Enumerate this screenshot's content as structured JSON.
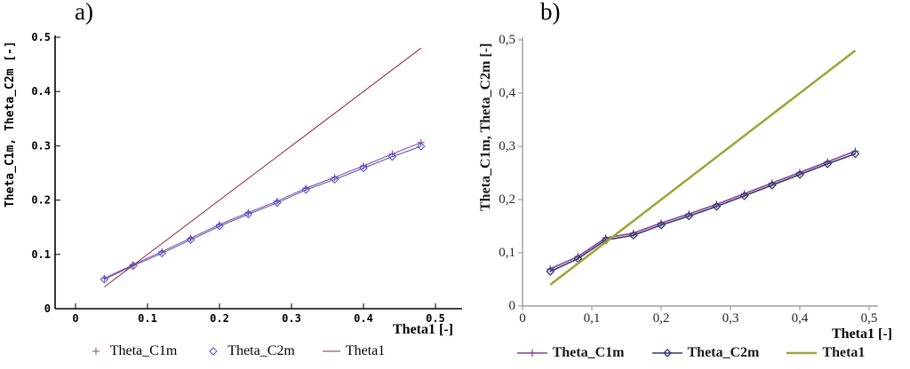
{
  "chart_data": [
    {
      "type": "line",
      "panel_label": "a)",
      "xlabel": "Theta1 [-]",
      "ylabel": "Theta_C1m, Theta_C2m [-]",
      "xlim": [
        0,
        0.5
      ],
      "ylim": [
        0,
        0.5
      ],
      "grid": false,
      "legend_position": "bottom",
      "xtick_values": [
        0,
        0.1,
        0.2,
        0.3,
        0.4,
        0.5
      ],
      "xtick_labels": [
        "0",
        "0.1",
        "0.2",
        "0.3",
        "0.4",
        "0.5"
      ],
      "ytick_values": [
        0,
        0.1,
        0.2,
        0.3,
        0.4,
        0.5
      ],
      "ytick_labels": [
        "0",
        "0.1",
        "0.2",
        "0.3",
        "0.4",
        "0.5"
      ],
      "x": [
        0.04,
        0.08,
        0.12,
        0.16,
        0.2,
        0.24,
        0.28,
        0.32,
        0.36,
        0.4,
        0.44,
        0.48
      ],
      "series": [
        {
          "name": "Theta_C1m",
          "color": "#8c3f98",
          "marker": "plus",
          "width": 1,
          "values": [
            0.056,
            0.081,
            0.105,
            0.13,
            0.155,
            0.177,
            0.198,
            0.222,
            0.242,
            0.263,
            0.285,
            0.306
          ]
        },
        {
          "name": "Theta_C2m",
          "color": "#4653c5",
          "marker": "diamond",
          "width": 1,
          "values": [
            0.054,
            0.079,
            0.102,
            0.127,
            0.152,
            0.174,
            0.195,
            0.219,
            0.238,
            0.259,
            0.28,
            0.299
          ]
        },
        {
          "name": "Theta1",
          "color": "#932339",
          "marker": "none",
          "width": 1,
          "values": [
            0.04,
            0.08,
            0.12,
            0.16,
            0.2,
            0.24,
            0.28,
            0.32,
            0.36,
            0.4,
            0.44,
            0.48
          ]
        }
      ]
    },
    {
      "type": "line",
      "panel_label": "b)",
      "xlabel": "Theta1 [-]",
      "ylabel": "Theta_C1m, Theta_C2m [-]",
      "xlim": [
        0,
        0.5
      ],
      "ylim": [
        0,
        0.5
      ],
      "grid": false,
      "legend_position": "bottom",
      "xtick_values": [
        0,
        0.1,
        0.2,
        0.3,
        0.4,
        0.5
      ],
      "xtick_labels": [
        "0",
        "0,1",
        "0,2",
        "0,3",
        "0,4",
        "0,5"
      ],
      "ytick_values": [
        0,
        0.1,
        0.2,
        0.3,
        0.4,
        0.5
      ],
      "ytick_labels": [
        "0",
        "0,1",
        "0,2",
        "0,3",
        "0,4",
        "0,5"
      ],
      "x": [
        0.04,
        0.08,
        0.12,
        0.16,
        0.2,
        0.24,
        0.28,
        0.32,
        0.36,
        0.4,
        0.44,
        0.48
      ],
      "series": [
        {
          "name": "Theta_C1m",
          "color": "#8c3f98",
          "marker": "plus",
          "width": 1.6,
          "values": [
            0.07,
            0.093,
            0.128,
            0.137,
            0.156,
            0.173,
            0.191,
            0.211,
            0.231,
            0.251,
            0.271,
            0.291
          ]
        },
        {
          "name": "Theta_C2m",
          "color": "#2f3c6e",
          "marker": "diamond",
          "width": 1.6,
          "values": [
            0.065,
            0.089,
            0.124,
            0.133,
            0.152,
            0.169,
            0.187,
            0.207,
            0.227,
            0.247,
            0.267,
            0.286
          ]
        },
        {
          "name": "Theta1",
          "color": "#a2a33b",
          "marker": "none",
          "width": 2.6,
          "values": [
            0.04,
            0.08,
            0.12,
            0.16,
            0.2,
            0.24,
            0.28,
            0.32,
            0.36,
            0.4,
            0.44,
            0.48
          ]
        }
      ]
    }
  ]
}
